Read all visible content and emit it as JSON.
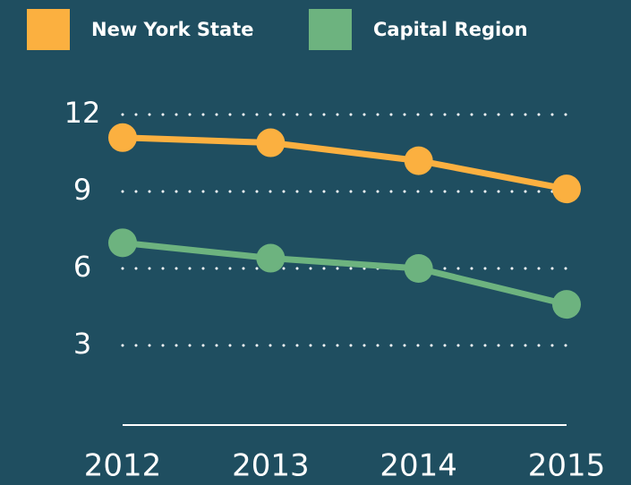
{
  "chart_data": {
    "type": "line",
    "categories": [
      "2012",
      "2013",
      "2014",
      "2015"
    ],
    "series": [
      {
        "name": "New York State",
        "color": "#fbb040",
        "values": [
          11.1,
          10.9,
          10.2,
          9.1
        ]
      },
      {
        "name": "Capital Region",
        "color": "#6db37f",
        "values": [
          7.0,
          6.4,
          6.0,
          4.6
        ]
      }
    ],
    "ylim": [
      0,
      12
    ],
    "yticks": [
      3,
      6,
      9,
      12
    ],
    "grid": true
  }
}
